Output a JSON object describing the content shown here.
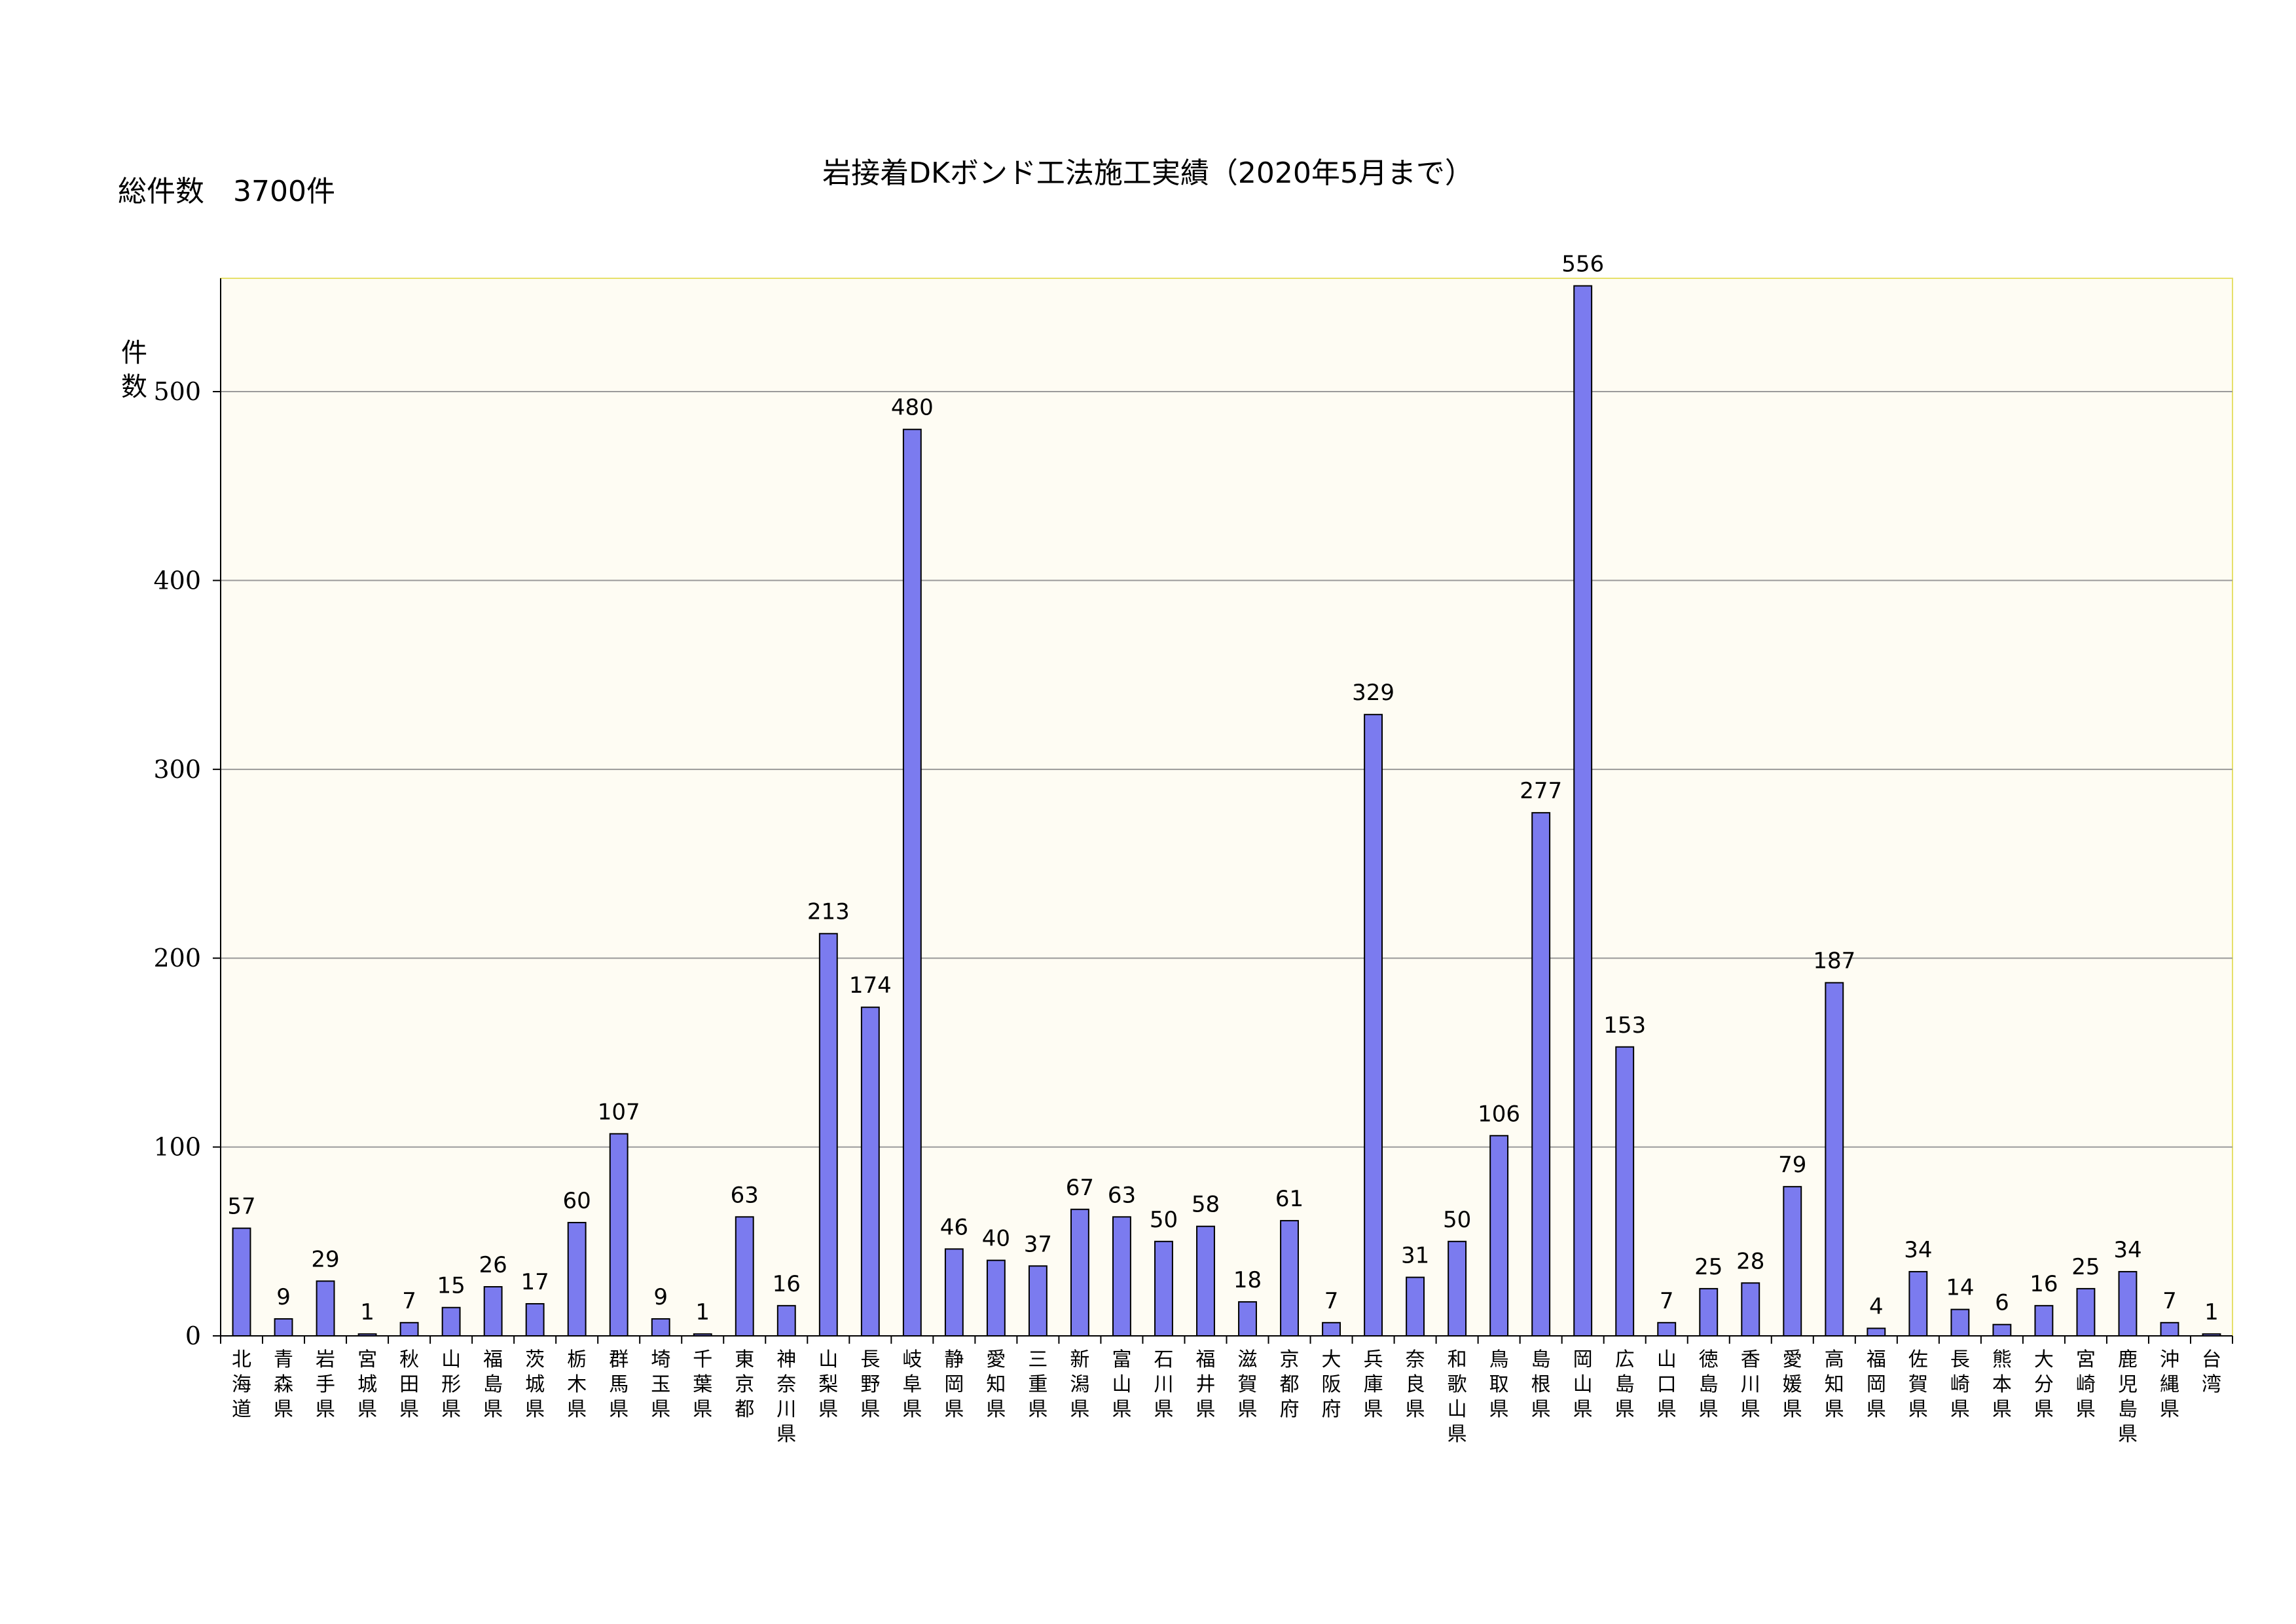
{
  "header": {
    "title": "岩接着DKボンド工法施工実績（2020年5月まで）",
    "total_label": "総件数　3700件"
  },
  "colors": {
    "plot_bg": "#fefcf3",
    "plot_border": "#e6e06a",
    "bar": "#7b7bef",
    "bar_edge": "#000000",
    "grid": "#9a9a9a"
  },
  "chart_data": {
    "type": "bar",
    "title": "岩接着DKボンド工法施工実績（2020年5月まで）",
    "ylabel": "件数",
    "ylim": [
      0,
      560
    ],
    "yticks": [
      0,
      100,
      200,
      300,
      400,
      500
    ],
    "grid": true,
    "data_labels": true,
    "categories": [
      "北海道",
      "青森県",
      "岩手県",
      "宮城県",
      "秋田県",
      "山形県",
      "福島県",
      "茨城県",
      "栃木県",
      "群馬県",
      "埼玉県",
      "千葉県",
      "東京都",
      "神奈川県",
      "山梨県",
      "長野県",
      "岐阜県",
      "静岡県",
      "愛知県",
      "三重県",
      "新潟県",
      "富山県",
      "石川県",
      "福井県",
      "滋賀県",
      "京都府",
      "大阪府",
      "兵庫県",
      "奈良県",
      "和歌山県",
      "鳥取県",
      "島根県",
      "岡山県",
      "広島県",
      "山口県",
      "徳島県",
      "香川県",
      "愛媛県",
      "高知県",
      "福岡県",
      "佐賀県",
      "長崎県",
      "熊本県",
      "大分県",
      "宮崎県",
      "鹿児島県",
      "沖縄県",
      "台湾"
    ],
    "values": [
      57,
      9,
      29,
      1,
      7,
      15,
      26,
      17,
      60,
      107,
      9,
      1,
      63,
      16,
      213,
      174,
      480,
      46,
      40,
      37,
      67,
      63,
      50,
      58,
      18,
      61,
      7,
      329,
      31,
      50,
      106,
      277,
      556,
      153,
      7,
      25,
      28,
      79,
      187,
      4,
      34,
      14,
      6,
      16,
      25,
      34,
      7,
      1
    ]
  }
}
